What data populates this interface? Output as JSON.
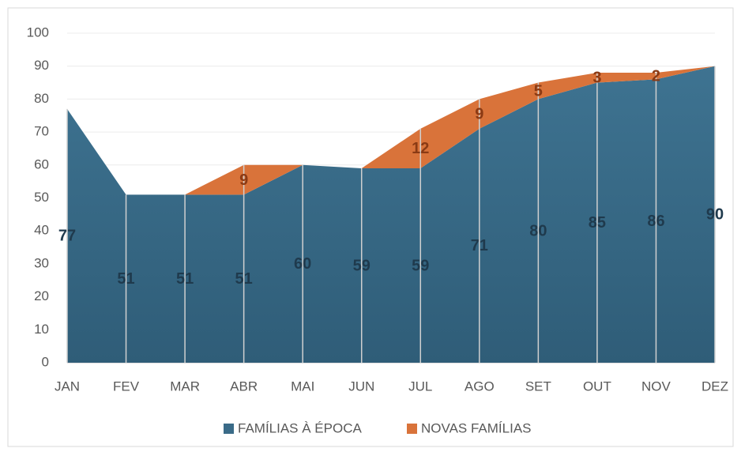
{
  "chart_data": {
    "type": "stacked_area",
    "categories": [
      "JAN",
      "FEV",
      "MAR",
      "ABR",
      "MAI",
      "JUN",
      "JUL",
      "AGO",
      "SET",
      "OUT",
      "NOV",
      "DEZ"
    ],
    "series": [
      {
        "name": "FAMÍLIAS À ÉPOCA",
        "color": "#3a6b88",
        "values": [
          77,
          51,
          51,
          51,
          60,
          59,
          59,
          71,
          80,
          85,
          86,
          90
        ]
      },
      {
        "name": "NOVAS FAMÍLIAS",
        "color": "#d9733a",
        "values": [
          0,
          0,
          0,
          9,
          0,
          0,
          12,
          9,
          5,
          3,
          2,
          0
        ]
      }
    ],
    "ylim": [
      0,
      100
    ],
    "yticks": [
      0,
      10,
      20,
      30,
      40,
      50,
      60,
      70,
      80,
      90,
      100
    ],
    "grid": true,
    "legend": "bottom"
  }
}
